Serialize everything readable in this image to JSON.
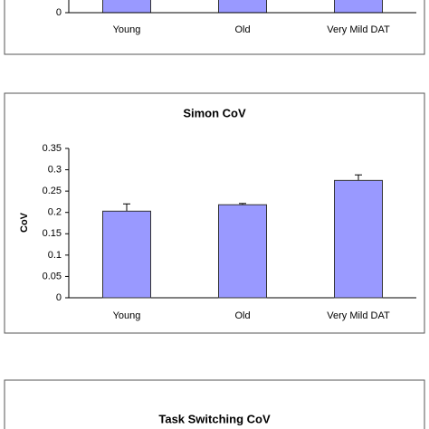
{
  "chart_data": [
    {
      "type": "bar",
      "categories": [
        "Young",
        "Old",
        "Very Mild DAT"
      ],
      "yticks": [
        0
      ],
      "color": "#9999ff"
    },
    {
      "type": "bar",
      "title": "Simon CoV",
      "y_label": "CoV",
      "categories": [
        "Young",
        "Old",
        "Very Mild DAT"
      ],
      "values": [
        0.203,
        0.218,
        0.275
      ],
      "errors": [
        0.017,
        0.003,
        0.013
      ],
      "color": "#9999ff",
      "ylim": [
        0,
        0.35
      ],
      "yticks": [
        0,
        0.05,
        0.1,
        0.15,
        0.2,
        0.25,
        0.3,
        0.35
      ]
    },
    {
      "type": "bar",
      "title": "Task Switching CoV"
    }
  ]
}
